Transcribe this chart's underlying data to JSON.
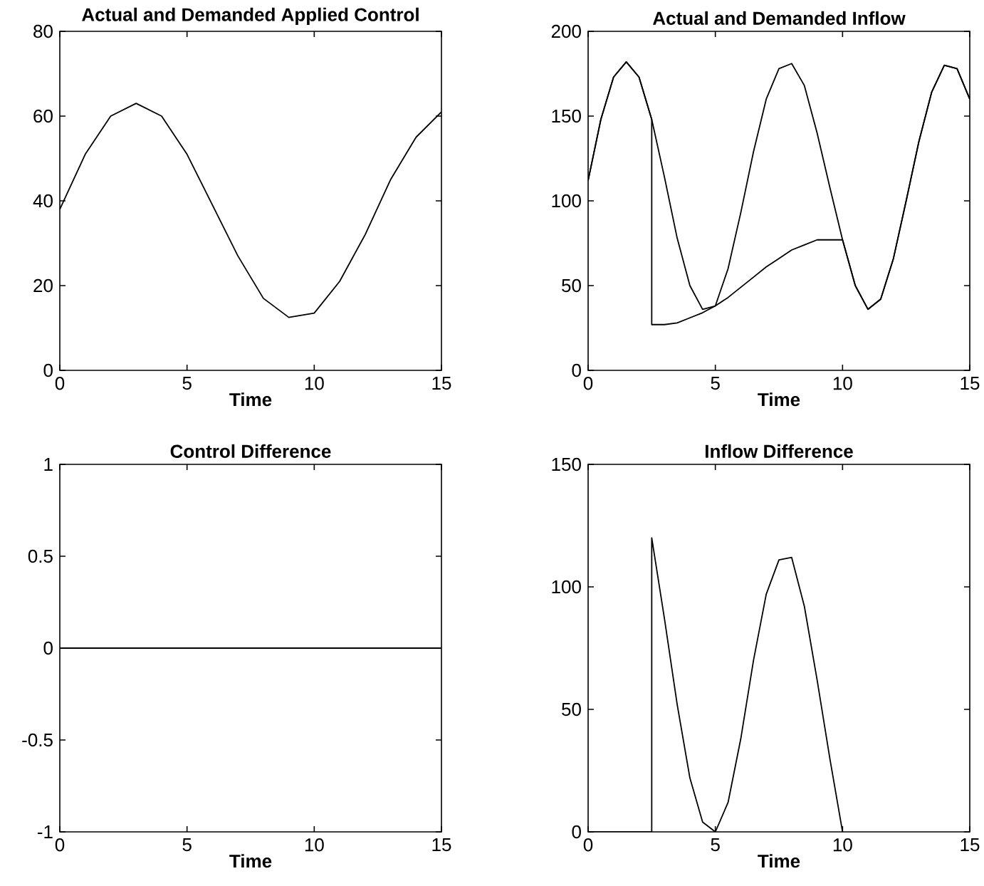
{
  "chart_data": [
    {
      "type": "line",
      "title": "Actual and Demanded Applied Control",
      "xlabel": "Time",
      "xlim": [
        0,
        15
      ],
      "xticks": [
        0,
        5,
        10,
        15
      ],
      "ylim": [
        0,
        80
      ],
      "yticks": [
        0,
        20,
        40,
        60,
        80
      ],
      "grid": false,
      "legend": false,
      "marker": "none",
      "line_style": "solid",
      "series": [
        {
          "color": "#000000",
          "x": [
            0,
            1,
            2,
            3,
            4,
            5,
            6,
            7,
            8,
            9,
            10,
            11,
            12,
            13,
            14,
            15
          ],
          "values": [
            38,
            51,
            60,
            63,
            60,
            51,
            39,
            27,
            17,
            12.5,
            13.5,
            21,
            32,
            45,
            55,
            61
          ]
        }
      ]
    },
    {
      "type": "line",
      "title": "Actual and Demanded Inflow",
      "xlabel": "Time",
      "xlim": [
        0,
        15
      ],
      "xticks": [
        0,
        5,
        10,
        15
      ],
      "ylim": [
        0,
        200
      ],
      "yticks": [
        0,
        50,
        100,
        150,
        200
      ],
      "grid": false,
      "legend": false,
      "marker": "none",
      "line_style": "solid",
      "series": [
        {
          "color": "#000000",
          "x": [
            0,
            0.5,
            1,
            1.5,
            2,
            2.5,
            3,
            3.5,
            4,
            4.5,
            5,
            5.5,
            6,
            6.5,
            7,
            7.5,
            8,
            8.5,
            9,
            9.5,
            10,
            10.5,
            11,
            11.5,
            12,
            12.5,
            13,
            13.5,
            14,
            14.5,
            15
          ],
          "values": [
            112,
            148,
            173,
            182,
            173,
            148,
            114,
            78,
            50,
            36,
            38,
            60,
            93,
            129,
            160,
            178,
            181,
            168,
            140,
            108,
            77,
            50,
            36,
            42,
            66,
            100,
            135,
            164,
            180,
            178,
            160
          ]
        },
        {
          "color": "#000000",
          "x": [
            0,
            0.5,
            1,
            1.5,
            2,
            2.5,
            2.5,
            3,
            3.5,
            4,
            4.5,
            5,
            5.5,
            6,
            6.5,
            7,
            7.5,
            8,
            8.5,
            9,
            9.5,
            10,
            10.5,
            11,
            11.5,
            12,
            12.5,
            13,
            13.5,
            14,
            14.5,
            15
          ],
          "values": [
            112,
            148,
            173,
            182,
            173,
            148,
            27,
            27,
            28,
            31,
            34,
            38,
            43,
            49,
            55,
            61,
            66,
            71,
            74,
            77,
            77,
            77,
            50,
            36,
            42,
            66,
            100,
            135,
            164,
            180,
            178,
            160
          ]
        }
      ]
    },
    {
      "type": "line",
      "title": "Control Difference",
      "xlabel": "Time",
      "xlim": [
        0,
        15
      ],
      "xticks": [
        0,
        5,
        10,
        15
      ],
      "ylim": [
        -1,
        1
      ],
      "yticks": [
        -1,
        -0.5,
        0,
        0.5,
        1
      ],
      "grid": false,
      "legend": false,
      "marker": "none",
      "line_style": "solid",
      "series": [
        {
          "color": "#000000",
          "x": [
            0,
            15
          ],
          "values": [
            0,
            0
          ]
        }
      ]
    },
    {
      "type": "line",
      "title": "Inflow Difference",
      "xlabel": "Time",
      "xlim": [
        0,
        15
      ],
      "xticks": [
        0,
        5,
        10,
        15
      ],
      "ylim": [
        0,
        150
      ],
      "yticks": [
        0,
        50,
        100,
        150
      ],
      "grid": false,
      "legend": false,
      "marker": "none",
      "line_style": "solid",
      "series": [
        {
          "color": "#000000",
          "x": [
            0,
            2.5,
            2.5,
            3,
            3.5,
            4,
            4.5,
            5,
            5.5,
            6,
            6.5,
            7,
            7.5,
            8,
            8.5,
            9,
            9.5,
            10
          ],
          "values": [
            0,
            0,
            120,
            87,
            52,
            22,
            4,
            0,
            12,
            38,
            70,
            97,
            111,
            112,
            92,
            62,
            30,
            0
          ]
        }
      ]
    }
  ]
}
